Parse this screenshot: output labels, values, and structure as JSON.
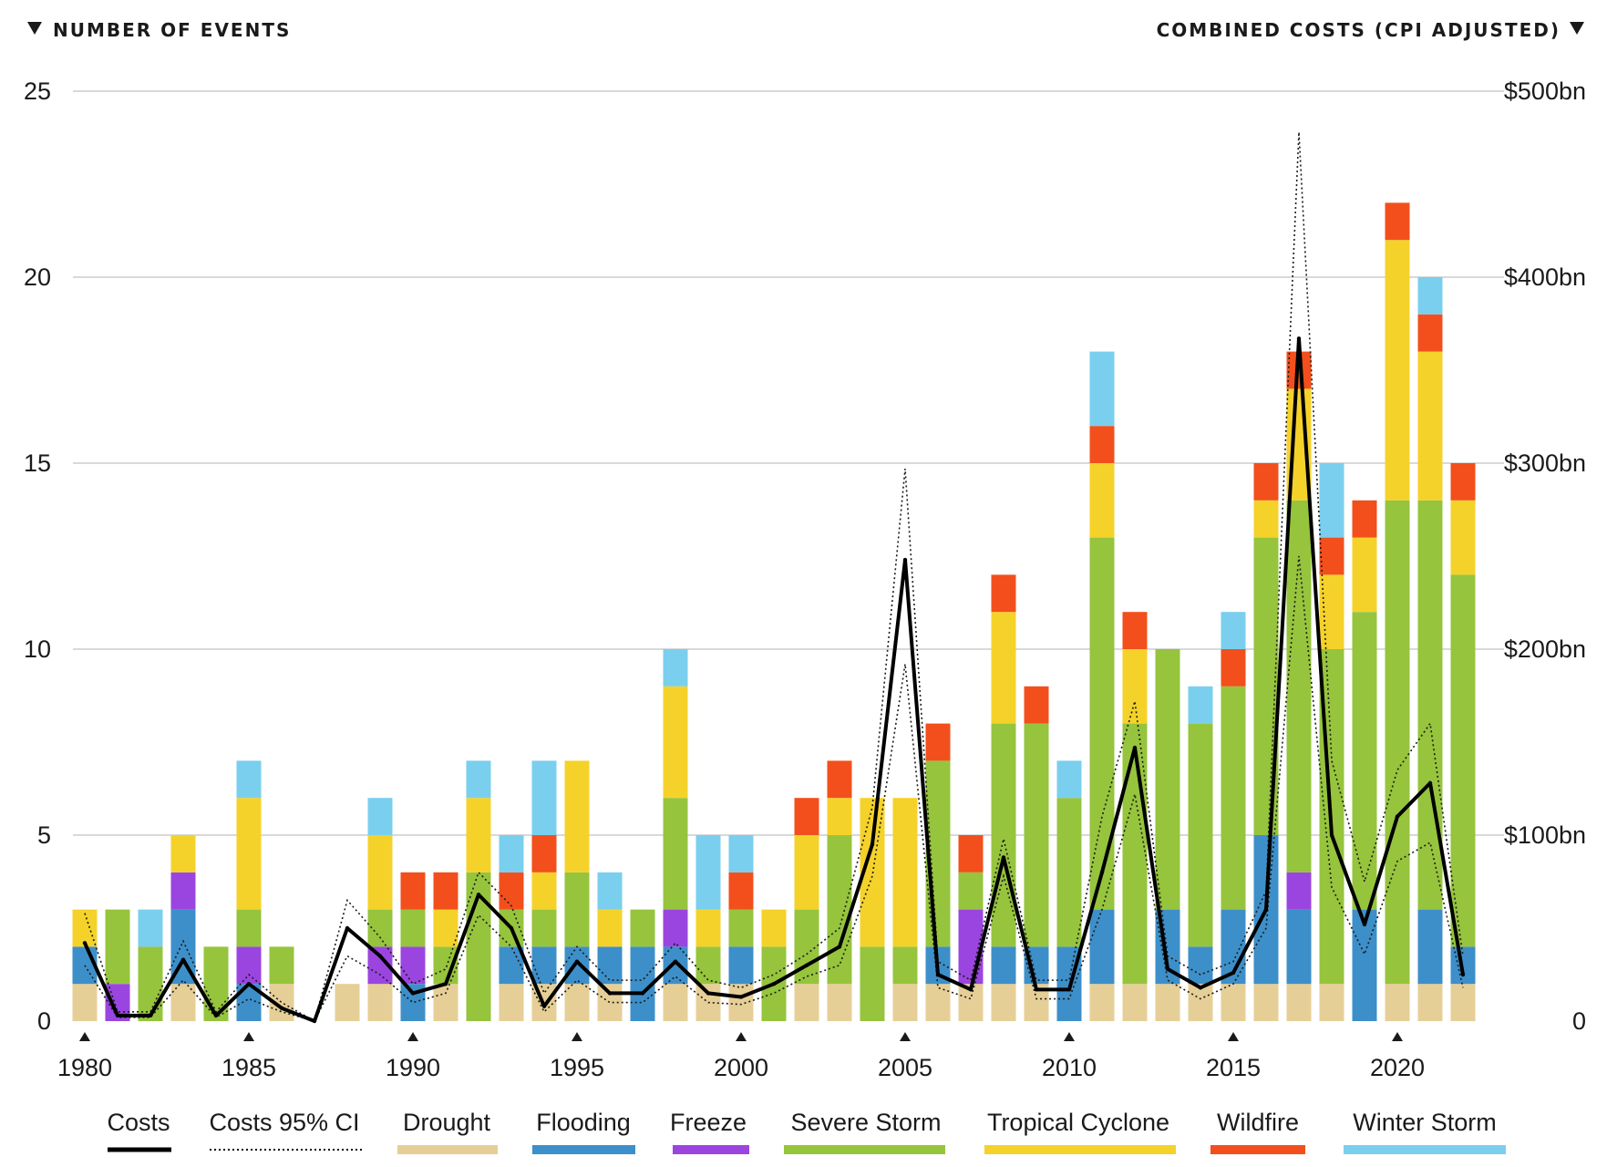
{
  "chart_data": {
    "type": "bar",
    "left_axis_title": "NUMBER OF EVENTS",
    "right_axis_title": "COMBINED COSTS (CPI ADJUSTED)",
    "left_ylim": [
      0,
      25
    ],
    "right_ylim": [
      0,
      500
    ],
    "left_ticks": [
      "0",
      "5",
      "10",
      "15",
      "20",
      "25"
    ],
    "right_ticks": [
      "0",
      "$100bn",
      "$200bn",
      "$300bn",
      "$400bn",
      "$500bn"
    ],
    "x_tick_labels": [
      "1980",
      "1985",
      "1990",
      "1995",
      "2000",
      "2005",
      "2010",
      "2015",
      "2020"
    ],
    "grid": true,
    "legend_position": "bottom",
    "years": [
      1980,
      1981,
      1982,
      1983,
      1984,
      1985,
      1986,
      1987,
      1988,
      1989,
      1990,
      1991,
      1992,
      1993,
      1994,
      1995,
      1996,
      1997,
      1998,
      1999,
      2000,
      2001,
      2002,
      2003,
      2004,
      2005,
      2006,
      2007,
      2008,
      2009,
      2010,
      2011,
      2012,
      2013,
      2014,
      2015,
      2016,
      2017,
      2018,
      2019,
      2020,
      2021,
      2022
    ],
    "series": [
      {
        "name": "Drought",
        "color": "#e6cf96",
        "values": [
          1,
          0,
          0,
          1,
          0,
          0,
          1,
          0,
          1,
          1,
          0,
          1,
          0,
          1,
          1,
          1,
          1,
          0,
          1,
          1,
          1,
          0,
          1,
          1,
          0,
          1,
          1,
          1,
          1,
          1,
          0,
          1,
          1,
          1,
          1,
          1,
          1,
          1,
          1,
          0,
          1,
          1,
          1
        ]
      },
      {
        "name": "Flooding",
        "color": "#3d8fc9",
        "values": [
          1,
          0,
          0,
          2,
          0,
          1,
          0,
          0,
          0,
          0,
          1,
          0,
          0,
          1,
          1,
          1,
          1,
          2,
          1,
          0,
          1,
          0,
          0,
          0,
          0,
          0,
          1,
          0,
          1,
          1,
          2,
          2,
          0,
          2,
          1,
          2,
          4,
          2,
          0,
          3,
          0,
          2,
          1
        ]
      },
      {
        "name": "Freeze",
        "color": "#9b45e0",
        "values": [
          0,
          1,
          0,
          1,
          0,
          1,
          0,
          0,
          0,
          1,
          1,
          0,
          0,
          0,
          0,
          0,
          0,
          0,
          1,
          0,
          0,
          0,
          0,
          0,
          0,
          0,
          0,
          2,
          0,
          0,
          0,
          0,
          0,
          0,
          0,
          0,
          0,
          1,
          0,
          0,
          0,
          0,
          0
        ]
      },
      {
        "name": "Severe Storm",
        "color": "#96c43d",
        "values": [
          0,
          2,
          2,
          0,
          2,
          1,
          1,
          0,
          0,
          1,
          1,
          1,
          4,
          1,
          1,
          2,
          0,
          1,
          3,
          1,
          1,
          2,
          2,
          4,
          2,
          1,
          5,
          1,
          6,
          6,
          4,
          10,
          7,
          7,
          6,
          6,
          8,
          10,
          9,
          8,
          13,
          11,
          10
        ]
      },
      {
        "name": "Tropical Cyclone",
        "color": "#f5d22a",
        "values": [
          1,
          0,
          0,
          1,
          0,
          3,
          0,
          0,
          0,
          2,
          0,
          1,
          2,
          0,
          1,
          3,
          1,
          0,
          3,
          1,
          0,
          1,
          2,
          1,
          4,
          4,
          0,
          0,
          3,
          0,
          0,
          2,
          2,
          0,
          0,
          0,
          1,
          3,
          2,
          2,
          7,
          4,
          2
        ]
      },
      {
        "name": "Wildfire",
        "color": "#f24f1c",
        "values": [
          0,
          0,
          0,
          0,
          0,
          0,
          0,
          0,
          0,
          0,
          1,
          1,
          0,
          1,
          1,
          0,
          0,
          0,
          0,
          0,
          1,
          0,
          1,
          1,
          0,
          0,
          1,
          1,
          1,
          1,
          0,
          1,
          1,
          0,
          0,
          1,
          1,
          1,
          1,
          1,
          1,
          1,
          1
        ]
      },
      {
        "name": "Winter Storm",
        "color": "#7acfee",
        "values": [
          0,
          0,
          1,
          0,
          0,
          1,
          0,
          0,
          0,
          1,
          0,
          0,
          1,
          1,
          2,
          0,
          1,
          0,
          1,
          2,
          1,
          0,
          0,
          0,
          0,
          0,
          0,
          0,
          0,
          0,
          1,
          2,
          0,
          0,
          1,
          1,
          0,
          0,
          2,
          0,
          0,
          1,
          0
        ]
      }
    ],
    "costs": {
      "name": "Costs",
      "color": "#000000",
      "values": [
        42,
        3,
        3,
        33,
        3,
        20,
        7,
        0,
        50,
        35,
        15,
        20,
        68,
        50,
        8,
        32,
        15,
        15,
        32,
        15,
        13,
        20,
        30,
        40,
        95,
        248,
        25,
        17,
        88,
        17,
        17,
        80,
        147,
        28,
        18,
        26,
        60,
        367,
        100,
        52,
        110,
        128,
        25
      ]
    },
    "costs_ci": {
      "name": "Costs 95% CI",
      "color": "#000000",
      "upper": [
        58,
        5,
        5,
        43,
        5,
        25,
        10,
        0,
        65,
        45,
        20,
        28,
        80,
        62,
        15,
        40,
        22,
        22,
        42,
        22,
        18,
        25,
        36,
        50,
        115,
        297,
        32,
        22,
        98,
        22,
        22,
        110,
        172,
        35,
        25,
        32,
        70,
        478,
        140,
        75,
        135,
        160,
        35
      ],
      "lower": [
        30,
        2,
        2,
        22,
        2,
        12,
        5,
        0,
        35,
        25,
        10,
        15,
        57,
        40,
        5,
        22,
        10,
        10,
        24,
        10,
        9,
        15,
        24,
        30,
        78,
        192,
        18,
        12,
        78,
        12,
        12,
        60,
        122,
        22,
        12,
        20,
        50,
        250,
        72,
        36,
        86,
        96,
        18
      ]
    },
    "legend": [
      {
        "label": "Costs",
        "kind": "solid-line",
        "color": "#000000"
      },
      {
        "label": "Costs 95% CI",
        "kind": "dotted-line",
        "color": "#000000"
      },
      {
        "label": "Drought",
        "kind": "swatch",
        "color": "#e6cf96"
      },
      {
        "label": "Flooding",
        "kind": "swatch",
        "color": "#3d8fc9"
      },
      {
        "label": "Freeze",
        "kind": "swatch",
        "color": "#9b45e0"
      },
      {
        "label": "Severe Storm",
        "kind": "swatch",
        "color": "#96c43d"
      },
      {
        "label": "Tropical Cyclone",
        "kind": "swatch",
        "color": "#f5d22a"
      },
      {
        "label": "Wildfire",
        "kind": "swatch",
        "color": "#f24f1c"
      },
      {
        "label": "Winter Storm",
        "kind": "swatch",
        "color": "#7acfee"
      }
    ]
  }
}
